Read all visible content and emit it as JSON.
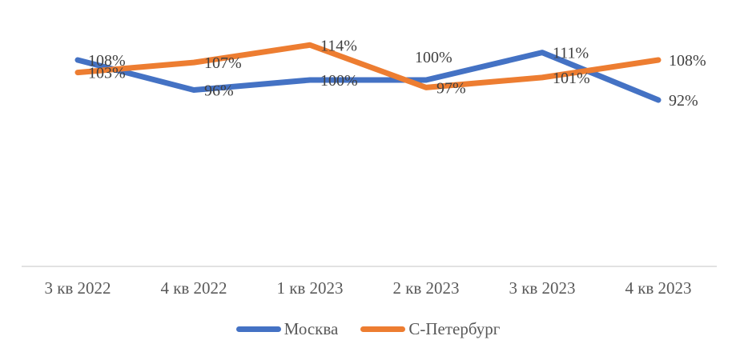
{
  "chart_data": {
    "type": "line",
    "title": "",
    "xlabel": "",
    "ylabel": "",
    "grid": false,
    "legend_position": "bottom",
    "value_suffix": "%",
    "axis_line_color": "#d9d9d9",
    "data_label_color": "#404040",
    "axis_label_color": "#595959",
    "categories": [
      "3 кв 2022",
      "4 кв 2022",
      "1 кв 2023",
      "2 кв 2023",
      "3 кв 2023",
      "4 кв 2023"
    ],
    "series": [
      {
        "name": "Москва",
        "color": "#4472c4",
        "values": [
          108,
          96,
          100,
          100,
          111,
          92
        ],
        "labels": [
          "108%",
          "96%",
          "100%",
          "100%",
          "111%",
          "92%"
        ],
        "label_positions": [
          "right",
          "right",
          "right",
          "above",
          "right",
          "right"
        ]
      },
      {
        "name": "С-Петербург",
        "color": "#ed7d31",
        "values": [
          103,
          107,
          114,
          97,
          101,
          108
        ],
        "labels": [
          "103%",
          "107%",
          "114%",
          "97%",
          "101%",
          "108%"
        ],
        "label_positions": [
          "right",
          "right",
          "right",
          "right",
          "right",
          "right"
        ]
      }
    ],
    "ylim_visible_top": 114,
    "ylim_visible_bottom": 92
  }
}
